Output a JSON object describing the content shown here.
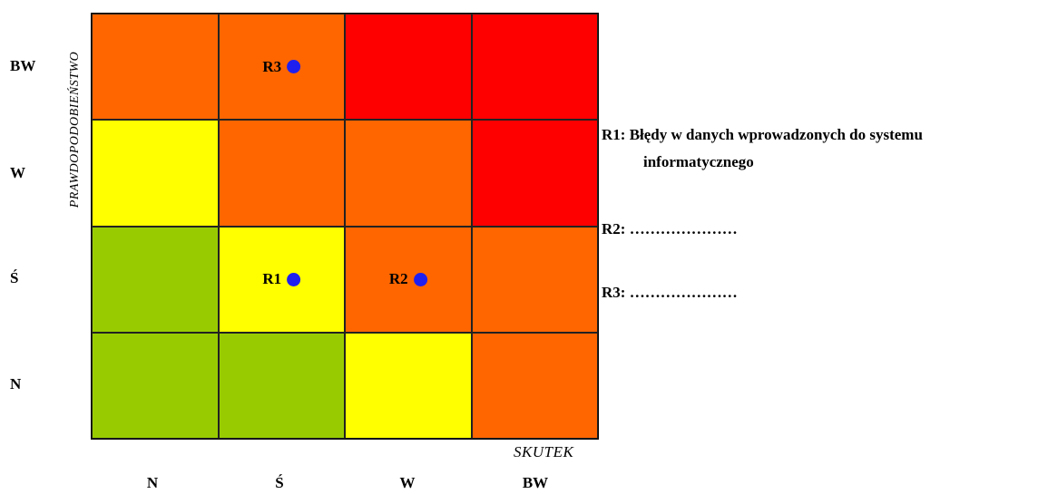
{
  "matrix": {
    "colors": {
      "green": "#99cc00",
      "yellow": "#ffff00",
      "orange": "#ff6600",
      "red": "#ff0000",
      "marker_blue": "#1f1ff0"
    },
    "rows": [
      [
        "orange",
        "orange",
        "red",
        "red"
      ],
      [
        "yellow",
        "orange",
        "orange",
        "red"
      ],
      [
        "green",
        "yellow",
        "orange",
        "orange"
      ],
      [
        "green",
        "green",
        "yellow",
        "orange"
      ]
    ],
    "row_labels": [
      "BW",
      "W",
      "Ś",
      "N"
    ],
    "col_labels": [
      "N",
      "Ś",
      "W",
      "BW"
    ],
    "y_title": "PRAWDOPODOBIEŃSTWO",
    "x_title": "SKUTEK",
    "markers": [
      {
        "label": "R3",
        "row": 0,
        "col": 1
      },
      {
        "label": "R1",
        "row": 2,
        "col": 1
      },
      {
        "label": "R2",
        "row": 2,
        "col": 2
      }
    ]
  },
  "legend": {
    "r1_prefix": "R1: ",
    "r1_line1": "Błędy w danych wprowadzonych do systemu",
    "r1_line2": "informatycznego",
    "r2": "R2: …………………",
    "r3": "R3: …………………"
  }
}
